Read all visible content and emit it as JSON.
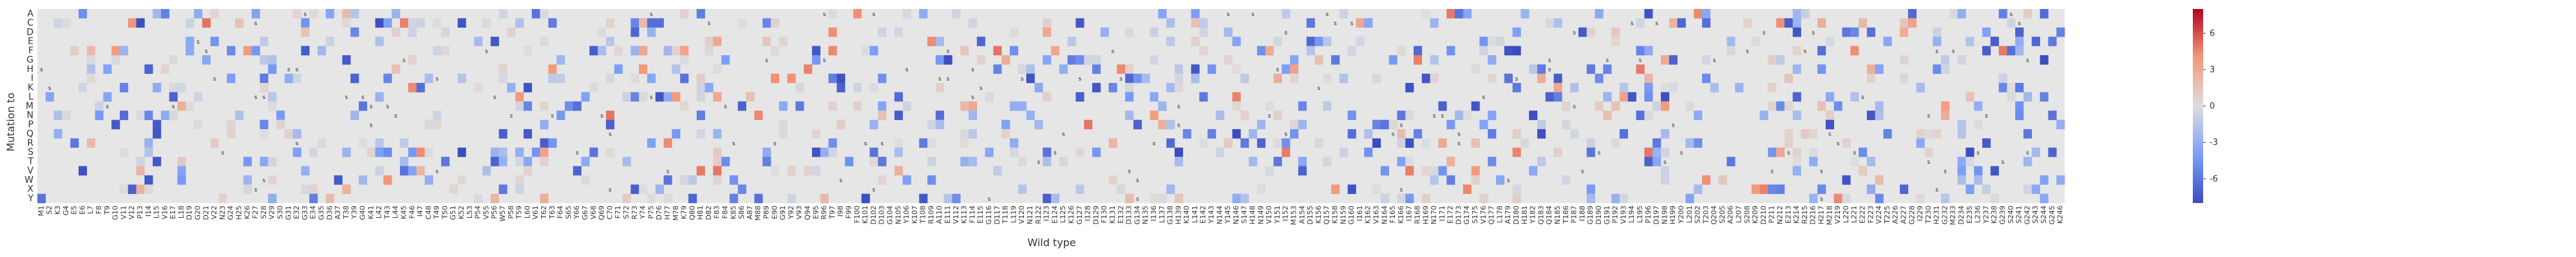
{
  "chart_data": {
    "type": "heatmap",
    "xlabel": "Wild type",
    "ylabel": "Mutation to",
    "y_categories": [
      "A",
      "C",
      "D",
      "E",
      "F",
      "G",
      "H",
      "I",
      "K",
      "L",
      "M",
      "N",
      "P",
      "Q",
      "R",
      "S",
      "T",
      "V",
      "W",
      "X",
      "Y"
    ],
    "n_positions": 246,
    "x_tick_labels": [
      "M1",
      "S2",
      "K3",
      "G4",
      "E5",
      "E6",
      "L7",
      "F8",
      "T9",
      "G10",
      "V11",
      "V12",
      "P13",
      "I14",
      "L15",
      "V16",
      "E17",
      "L18",
      "D19",
      "G20",
      "D21",
      "V22",
      "N23",
      "G24",
      "H25",
      "K26",
      "F27",
      "S28",
      "V29",
      "S30",
      "G31",
      "E32",
      "G33",
      "E34",
      "G35",
      "D36",
      "A37",
      "T38",
      "Y39",
      "G40",
      "K41",
      "L42",
      "T43",
      "L44",
      "K45",
      "F46",
      "I47",
      "C48",
      "T49",
      "T50",
      "G51",
      "K52",
      "L53",
      "P54",
      "V55",
      "P56",
      "W57",
      "P58",
      "T59",
      "L60",
      "V61",
      "T62",
      "T63",
      "F64",
      "S65",
      "Y66",
      "G67",
      "V68",
      "Q69",
      "C70",
      "F71",
      "S72",
      "R73",
      "Y74",
      "P75",
      "D76",
      "H77",
      "M78",
      "K79",
      "Q80",
      "H81",
      "D82",
      "F83",
      "F84",
      "K85",
      "S86",
      "A87",
      "M88",
      "P89",
      "E90",
      "G91",
      "Y92",
      "V93",
      "Q94",
      "E95",
      "R96",
      "T97",
      "I98",
      "F99",
      "F100",
      "K101",
      "D102",
      "D103",
      "G104",
      "N105",
      "Y106",
      "K107",
      "T108",
      "R109",
      "A110",
      "E111",
      "V112",
      "K113",
      "F114",
      "E115",
      "G116",
      "D117",
      "T118",
      "L119",
      "V120",
      "N121",
      "R122",
      "I123",
      "E124",
      "L125",
      "K126",
      "G127",
      "I128",
      "D129",
      "F130",
      "K131",
      "E132",
      "D133",
      "G134",
      "N135",
      "I136",
      "L137",
      "G138",
      "H139",
      "K140",
      "L141",
      "E142",
      "Y143",
      "N144",
      "Y145",
      "N146",
      "S147",
      "H148",
      "N149",
      "V150",
      "Y151",
      "I152",
      "M153",
      "A154",
      "D155",
      "K156",
      "Q157",
      "K158",
      "N159",
      "G160",
      "I161",
      "K162",
      "V163",
      "N164",
      "F165",
      "K166",
      "I167",
      "R168",
      "H169",
      "N170",
      "I171",
      "E172",
      "D173",
      "G174",
      "S175",
      "V176",
      "Q177",
      "L178",
      "A179",
      "D180",
      "H181",
      "Y182",
      "Q183",
      "Q184",
      "N185",
      "T186",
      "P187",
      "I188",
      "G189",
      "D190",
      "G191",
      "P192",
      "V193",
      "L194",
      "L195",
      "P196",
      "D197",
      "N198",
      "H199",
      "Y200",
      "L201",
      "S202",
      "T203",
      "Q204",
      "S205",
      "A206",
      "L207",
      "S208",
      "K209",
      "D210",
      "P211",
      "N212",
      "E213",
      "K214",
      "R215",
      "D216",
      "H217",
      "M218",
      "V219",
      "L220",
      "L221",
      "E222",
      "F223",
      "V224",
      "T225",
      "A226",
      "A227",
      "G228",
      "I229",
      "T230",
      "H231",
      "G232",
      "M233",
      "D234",
      "E235",
      "L236",
      "Y237",
      "K238",
      "G239",
      "S240",
      "S241",
      "G242",
      "S243",
      "S244",
      "G245",
      "K246"
    ],
    "values_description": "Heat values per cell; the large majority of cells are unmeasured (grey). Cell-level values are not printed on the chart.",
    "marker_label": "s",
    "color_scale": {
      "min": -8,
      "max": 8
    },
    "colorbar_ticks": [
      6,
      3,
      0,
      -3,
      -6
    ],
    "colors": {
      "missing": "#e6e6e6",
      "low": "#3b4cc0",
      "mid": "#dddddd",
      "high": "#b40426"
    },
    "legend": "right"
  }
}
